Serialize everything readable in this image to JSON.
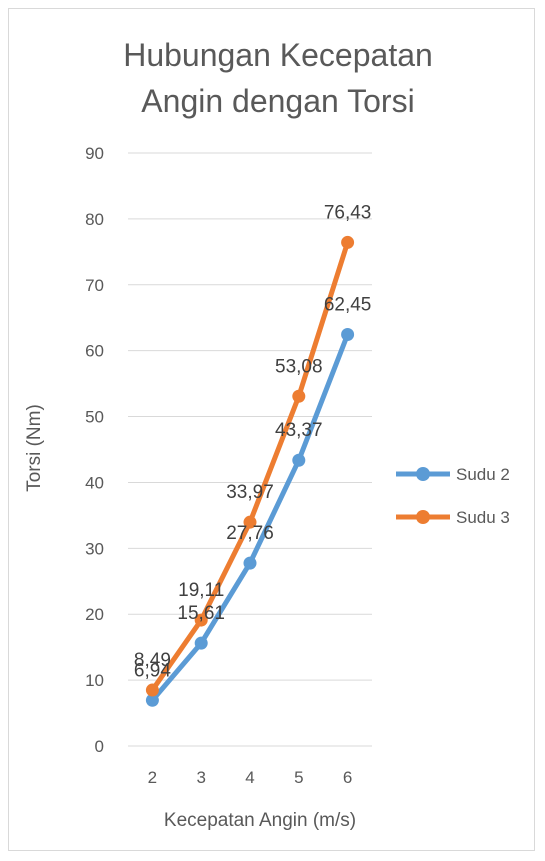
{
  "chart_data": {
    "type": "line",
    "title_lines": [
      "Hubungan Kecepatan",
      "Angin dengan Torsi"
    ],
    "xlabel": "Kecepatan Angin (m/s)",
    "ylabel": "Torsi (Nm)",
    "categories": [
      "2",
      "3",
      "4",
      "5",
      "6"
    ],
    "ylim": [
      0,
      90
    ],
    "yticks": [
      "0",
      "10",
      "20",
      "30",
      "40",
      "50",
      "60",
      "70",
      "80",
      "90"
    ],
    "grid": true,
    "legend_position": "right",
    "series": [
      {
        "name": "Sudu 2",
        "color": "#5b9bd5",
        "values": [
          6.94,
          15.61,
          27.76,
          43.37,
          62.45
        ],
        "labels": [
          "6,94",
          "15,61",
          "27,76",
          "43,37",
          "62,45"
        ]
      },
      {
        "name": "Sudu 3",
        "color": "#ed7d31",
        "values": [
          8.49,
          19.11,
          33.97,
          53.08,
          76.43
        ],
        "labels": [
          "8,49",
          "19,11",
          "33,97",
          "53,08",
          "76,43"
        ]
      }
    ]
  }
}
